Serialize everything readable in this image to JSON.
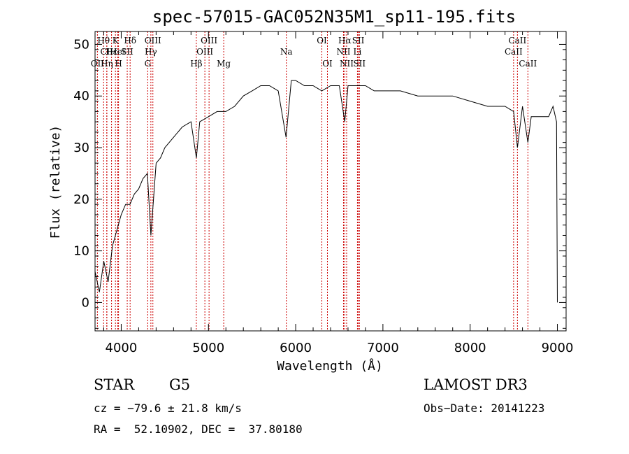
{
  "chart_data": {
    "type": "line",
    "title": "spec-57015-GAC052N35M1_sp11-195.fits",
    "xlabel": "Wavelength (Å)",
    "ylabel": "Flux (relative)",
    "xlim": [
      3700,
      9100
    ],
    "ylim": [
      -5.5,
      52.5
    ],
    "xticks": [
      4000,
      5000,
      6000,
      7000,
      8000,
      9000
    ],
    "yticks": [
      0,
      10,
      20,
      30,
      40,
      50
    ],
    "grid": false,
    "series": [
      {
        "name": "spectrum",
        "x": [
          3700,
          3750,
          3800,
          3850,
          3900,
          3950,
          4000,
          4050,
          4100,
          4150,
          4200,
          4250,
          4300,
          4340,
          4400,
          4450,
          4500,
          4600,
          4700,
          4800,
          4862,
          4900,
          5000,
          5100,
          5200,
          5300,
          5400,
          5500,
          5600,
          5700,
          5800,
          5890,
          5950,
          6000,
          6100,
          6200,
          6300,
          6400,
          6500,
          6563,
          6600,
          6700,
          6800,
          6900,
          7000,
          7200,
          7400,
          7600,
          7800,
          8000,
          8200,
          8400,
          8498,
          8542,
          8600,
          8662,
          8700,
          8800,
          8900,
          8950,
          8990,
          9000
        ],
        "y": [
          6,
          2,
          8,
          4,
          11,
          14,
          17,
          19,
          19,
          21,
          22,
          24,
          25,
          13,
          27,
          28,
          30,
          32,
          34,
          35,
          28,
          35,
          36,
          37,
          37,
          38,
          40,
          41,
          42,
          42,
          41,
          32,
          43,
          43,
          42,
          42,
          41,
          42,
          42,
          35,
          42,
          42,
          42,
          41,
          41,
          41,
          40,
          40,
          40,
          39,
          38,
          38,
          37,
          30,
          38,
          31,
          36,
          36,
          36,
          38,
          35,
          0
        ]
      }
    ],
    "spectral_lines": [
      {
        "label": "Hθ",
        "x": 3798,
        "row": 1
      },
      {
        "label": "CII",
        "x": 3835,
        "row": 2
      },
      {
        "label": "OII",
        "x": 3727,
        "row": 3
      },
      {
        "label": "Hε",
        "x": 3889,
        "row": 2
      },
      {
        "label": "Hη",
        "x": 3835,
        "row": 3
      },
      {
        "label": "K",
        "x": 3934,
        "row": 1
      },
      {
        "label": "H",
        "x": 3969,
        "row": 3
      },
      {
        "label": "HeI",
        "x": 3960,
        "row": 2
      },
      {
        "label": "Hδ",
        "x": 4102,
        "row": 1
      },
      {
        "label": "SII",
        "x": 4069,
        "row": 2
      },
      {
        "label": "OIII",
        "x": 4363,
        "row": 1
      },
      {
        "label": "Hγ",
        "x": 4340,
        "row": 2
      },
      {
        "label": "G",
        "x": 4304,
        "row": 3
      },
      {
        "label": "Hβ",
        "x": 4861,
        "row": 3
      },
      {
        "label": "OIII",
        "x": 5007,
        "row": 1
      },
      {
        "label": "OIII",
        "x": 4959,
        "row": 2
      },
      {
        "label": "Mg",
        "x": 5175,
        "row": 3
      },
      {
        "label": "Na",
        "x": 5893,
        "row": 2
      },
      {
        "label": "OI",
        "x": 6300,
        "row": 1
      },
      {
        "label": "OI",
        "x": 6364,
        "row": 3
      },
      {
        "label": "Hα",
        "x": 6563,
        "row": 1
      },
      {
        "label": "NII",
        "x": 6548,
        "row": 2
      },
      {
        "label": "NII",
        "x": 6584,
        "row": 3
      },
      {
        "label": "SII",
        "x": 6717,
        "row": 1
      },
      {
        "label": "Li",
        "x": 6708,
        "row": 2
      },
      {
        "label": "SII",
        "x": 6731,
        "row": 3
      },
      {
        "label": "CaII",
        "x": 8542,
        "row": 1
      },
      {
        "label": "CaII",
        "x": 8498,
        "row": 2
      },
      {
        "label": "CaII",
        "x": 8662,
        "row": 3
      }
    ]
  },
  "info": {
    "object_class": "STAR",
    "subclass": "G5",
    "survey": "LAMOST DR3",
    "cz": "cz = −79.6 ± 21.8 km/s",
    "obs_date": "Obs−Date: 20141223",
    "coords": "RA =  52.10902, DEC =  37.80180"
  },
  "colors": {
    "line": "#000000",
    "marker": "#cc0000",
    "axis": "#000000"
  }
}
